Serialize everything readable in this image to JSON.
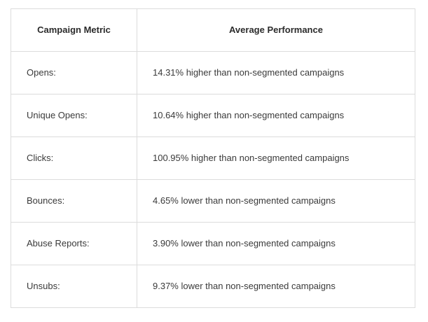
{
  "table": {
    "headers": {
      "metric": "Campaign Metric",
      "performance": "Average Performance"
    },
    "rows": [
      {
        "metric": "Opens:",
        "performance": "14.31% higher than non-segmented campaigns"
      },
      {
        "metric": "Unique Opens:",
        "performance": "10.64% higher than non-segmented campaigns"
      },
      {
        "metric": "Clicks:",
        "performance": "100.95% higher than non-segmented campaigns"
      },
      {
        "metric": "Bounces:",
        "performance": "4.65% lower than non-segmented campaigns"
      },
      {
        "metric": "Abuse Reports:",
        "performance": "3.90% lower than non-segmented campaigns"
      },
      {
        "metric": "Unsubs:",
        "performance": "9.37% lower than non-segmented campaigns"
      }
    ]
  }
}
